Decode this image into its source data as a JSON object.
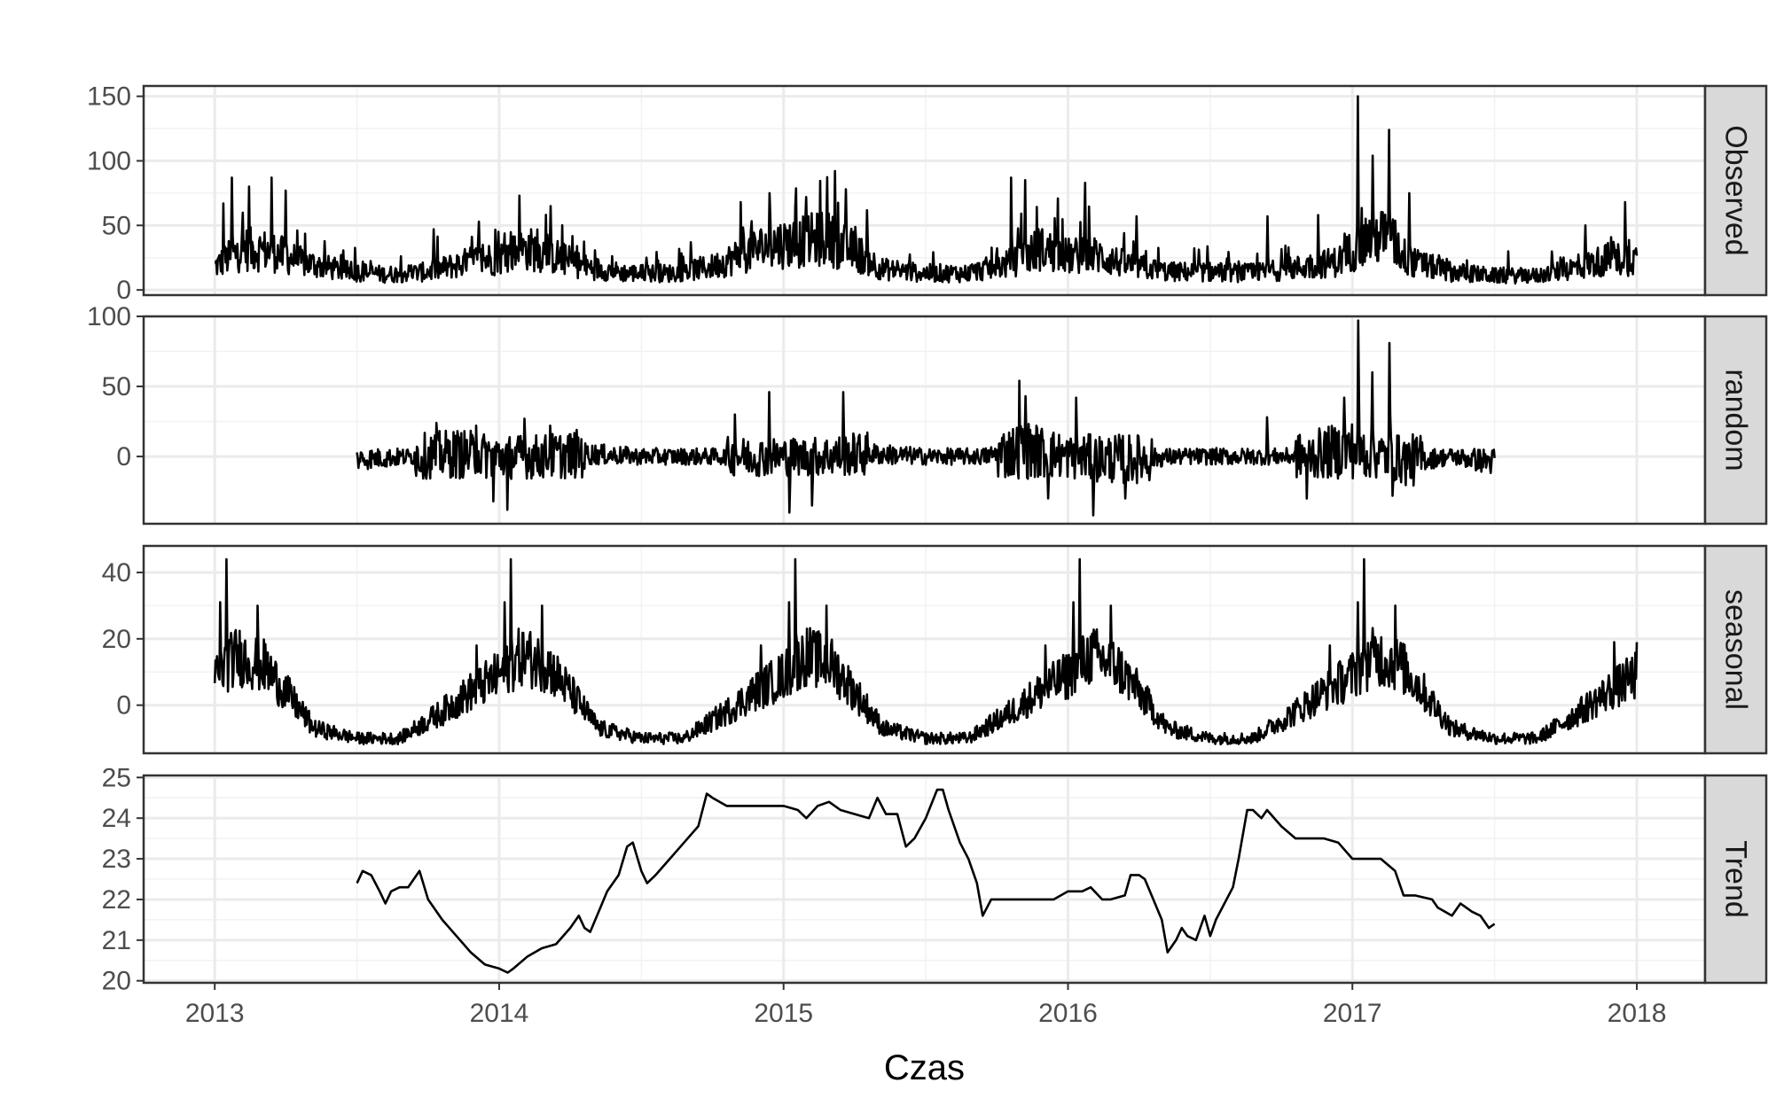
{
  "chart_data": {
    "type": "line",
    "xlabel": "Czas",
    "x_ticks": [
      2013,
      2014,
      2015,
      2016,
      2017,
      2018
    ],
    "xlim": [
      2012.75,
      2018.24
    ],
    "grid": true,
    "panels": [
      {
        "name": "Observed",
        "ylim": [
          -4,
          158
        ],
        "y_ticks": [
          0,
          50,
          100,
          150
        ],
        "x_range": [
          2013.0,
          2018.0
        ],
        "profile": [
          [
            2013.0,
            18
          ],
          [
            2013.1,
            32
          ],
          [
            2013.2,
            30
          ],
          [
            2013.3,
            22
          ],
          [
            2013.45,
            15
          ],
          [
            2013.6,
            12
          ],
          [
            2013.75,
            14
          ],
          [
            2013.9,
            22
          ],
          [
            2014.0,
            25
          ],
          [
            2014.1,
            32
          ],
          [
            2014.2,
            26
          ],
          [
            2014.3,
            18
          ],
          [
            2014.45,
            13
          ],
          [
            2014.6,
            13
          ],
          [
            2014.75,
            18
          ],
          [
            2014.85,
            27
          ],
          [
            2014.95,
            35
          ],
          [
            2015.05,
            37
          ],
          [
            2015.15,
            40
          ],
          [
            2015.25,
            30
          ],
          [
            2015.35,
            16
          ],
          [
            2015.5,
            13
          ],
          [
            2015.65,
            13
          ],
          [
            2015.8,
            21
          ],
          [
            2015.9,
            32
          ],
          [
            2016.0,
            26
          ],
          [
            2016.1,
            27
          ],
          [
            2016.2,
            20
          ],
          [
            2016.35,
            14
          ],
          [
            2016.5,
            14
          ],
          [
            2016.65,
            13
          ],
          [
            2016.8,
            17
          ],
          [
            2016.95,
            22
          ],
          [
            2017.05,
            40
          ],
          [
            2017.12,
            42
          ],
          [
            2017.2,
            22
          ],
          [
            2017.35,
            14
          ],
          [
            2017.5,
            11
          ],
          [
            2017.65,
            11
          ],
          [
            2017.8,
            18
          ],
          [
            2017.9,
            24
          ],
          [
            2018.0,
            24
          ]
        ],
        "spikes": [
          [
            2013.03,
            67
          ],
          [
            2013.06,
            87
          ],
          [
            2013.12,
            80
          ],
          [
            2013.2,
            87
          ],
          [
            2013.25,
            77
          ],
          [
            2013.77,
            47
          ],
          [
            2013.93,
            53
          ],
          [
            2014.07,
            73
          ],
          [
            2014.18,
            65
          ],
          [
            2014.85,
            68
          ],
          [
            2014.95,
            75
          ],
          [
            2015.08,
            72
          ],
          [
            2015.18,
            92
          ],
          [
            2015.22,
            78
          ],
          [
            2015.8,
            87
          ],
          [
            2015.85,
            85
          ],
          [
            2016.06,
            83
          ],
          [
            2016.24,
            57
          ],
          [
            2016.7,
            57
          ],
          [
            2016.88,
            58
          ],
          [
            2017.02,
            150
          ],
          [
            2017.07,
            104
          ],
          [
            2017.13,
            124
          ],
          [
            2017.2,
            75
          ],
          [
            2017.82,
            50
          ],
          [
            2017.96,
            68
          ]
        ]
      },
      {
        "name": "random",
        "ylim": [
          -48,
          100
        ],
        "y_ticks": [
          0,
          50,
          100
        ],
        "x_range": [
          2013.5,
          2017.5
        ],
        "profile": [
          [
            2013.5,
            -2
          ],
          [
            2013.7,
            0
          ],
          [
            2013.85,
            2
          ],
          [
            2014.0,
            0
          ],
          [
            2014.15,
            0
          ],
          [
            2014.3,
            2
          ],
          [
            2014.5,
            0
          ],
          [
            2014.7,
            0
          ],
          [
            2014.9,
            0
          ],
          [
            2015.1,
            0
          ],
          [
            2015.3,
            2
          ],
          [
            2015.5,
            0
          ],
          [
            2015.7,
            0
          ],
          [
            2015.85,
            5
          ],
          [
            2016.0,
            0
          ],
          [
            2016.2,
            -2
          ],
          [
            2016.4,
            0
          ],
          [
            2016.6,
            0
          ],
          [
            2016.8,
            0
          ],
          [
            2017.0,
            5
          ],
          [
            2017.2,
            -3
          ],
          [
            2017.35,
            0
          ],
          [
            2017.5,
            -4
          ]
        ],
        "spikes": [
          [
            2013.78,
            24
          ],
          [
            2013.92,
            22
          ],
          [
            2013.98,
            -32
          ],
          [
            2014.03,
            -38
          ],
          [
            2014.09,
            27
          ],
          [
            2014.18,
            22
          ],
          [
            2014.83,
            30
          ],
          [
            2014.95,
            46
          ],
          [
            2015.02,
            -40
          ],
          [
            2015.1,
            -35
          ],
          [
            2015.21,
            46
          ],
          [
            2015.83,
            54
          ],
          [
            2015.85,
            43
          ],
          [
            2015.93,
            -30
          ],
          [
            2016.03,
            42
          ],
          [
            2016.09,
            -42
          ],
          [
            2016.2,
            -30
          ],
          [
            2016.7,
            28
          ],
          [
            2016.84,
            -30
          ],
          [
            2016.97,
            42
          ],
          [
            2017.02,
            97
          ],
          [
            2017.07,
            60
          ],
          [
            2017.13,
            81
          ],
          [
            2017.14,
            -28
          ]
        ]
      },
      {
        "name": "seasonal",
        "ylim": [
          -14.5,
          48
        ],
        "y_ticks": [
          0,
          20,
          40
        ],
        "x_range": [
          2013.0,
          2018.0
        ],
        "profile": [
          [
            2013.0,
            9
          ],
          [
            2013.08,
            15
          ],
          [
            2013.17,
            12
          ],
          [
            2013.25,
            4
          ],
          [
            2013.35,
            -7
          ],
          [
            2013.5,
            -10
          ],
          [
            2013.65,
            -10
          ],
          [
            2013.8,
            -2
          ],
          [
            2013.9,
            4
          ],
          [
            2014.0,
            9
          ],
          [
            2014.08,
            15
          ],
          [
            2014.17,
            12
          ],
          [
            2014.25,
            4
          ],
          [
            2014.35,
            -7
          ],
          [
            2014.5,
            -10
          ],
          [
            2014.65,
            -10
          ],
          [
            2014.8,
            -2
          ],
          [
            2014.9,
            4
          ],
          [
            2015.0,
            9
          ],
          [
            2015.08,
            15
          ],
          [
            2015.17,
            12
          ],
          [
            2015.25,
            4
          ],
          [
            2015.35,
            -7
          ],
          [
            2015.5,
            -10
          ],
          [
            2015.65,
            -10
          ],
          [
            2015.8,
            -2
          ],
          [
            2015.9,
            4
          ],
          [
            2016.0,
            9
          ],
          [
            2016.08,
            15
          ],
          [
            2016.17,
            12
          ],
          [
            2016.25,
            4
          ],
          [
            2016.35,
            -7
          ],
          [
            2016.5,
            -10
          ],
          [
            2016.65,
            -10
          ],
          [
            2016.8,
            -2
          ],
          [
            2016.9,
            4
          ],
          [
            2017.0,
            9
          ],
          [
            2017.08,
            15
          ],
          [
            2017.17,
            12
          ],
          [
            2017.25,
            4
          ],
          [
            2017.35,
            -7
          ],
          [
            2017.5,
            -10
          ],
          [
            2017.65,
            -10
          ],
          [
            2017.8,
            -2
          ],
          [
            2017.9,
            4
          ],
          [
            2018.0,
            9
          ]
        ],
        "spikes": [
          [
            2013.04,
            44
          ],
          [
            2014.04,
            44
          ],
          [
            2015.04,
            44
          ],
          [
            2016.04,
            44
          ],
          [
            2017.04,
            44
          ],
          [
            2013.02,
            31
          ],
          [
            2014.02,
            31
          ],
          [
            2015.02,
            31
          ],
          [
            2016.02,
            31
          ],
          [
            2017.02,
            31
          ],
          [
            2013.15,
            30
          ],
          [
            2014.15,
            30
          ],
          [
            2015.15,
            30
          ],
          [
            2016.15,
            30
          ],
          [
            2017.15,
            30
          ],
          [
            2013.92,
            18
          ],
          [
            2014.92,
            18
          ],
          [
            2015.92,
            18
          ],
          [
            2016.92,
            18
          ],
          [
            2017.92,
            19
          ],
          [
            2018.0,
            19
          ]
        ]
      },
      {
        "name": "Trend",
        "ylim": [
          19.95,
          25.05
        ],
        "y_ticks": [
          20,
          21,
          22,
          23,
          24,
          25
        ],
        "x_range": [
          2013.5,
          2017.5
        ],
        "series": [
          [
            2013.5,
            22.4
          ],
          [
            2013.52,
            22.7
          ],
          [
            2013.55,
            22.6
          ],
          [
            2013.58,
            22.2
          ],
          [
            2013.6,
            21.9
          ],
          [
            2013.62,
            22.2
          ],
          [
            2013.65,
            22.3
          ],
          [
            2013.68,
            22.3
          ],
          [
            2013.72,
            22.7
          ],
          [
            2013.75,
            22.0
          ],
          [
            2013.8,
            21.5
          ],
          [
            2013.85,
            21.1
          ],
          [
            2013.9,
            20.7
          ],
          [
            2013.95,
            20.4
          ],
          [
            2014.0,
            20.3
          ],
          [
            2014.03,
            20.2
          ],
          [
            2014.05,
            20.3
          ],
          [
            2014.1,
            20.6
          ],
          [
            2014.15,
            20.8
          ],
          [
            2014.2,
            20.9
          ],
          [
            2014.25,
            21.3
          ],
          [
            2014.28,
            21.6
          ],
          [
            2014.3,
            21.3
          ],
          [
            2014.32,
            21.2
          ],
          [
            2014.35,
            21.7
          ],
          [
            2014.38,
            22.2
          ],
          [
            2014.42,
            22.6
          ],
          [
            2014.45,
            23.3
          ],
          [
            2014.47,
            23.4
          ],
          [
            2014.5,
            22.7
          ],
          [
            2014.52,
            22.4
          ],
          [
            2014.55,
            22.6
          ],
          [
            2014.6,
            23.0
          ],
          [
            2014.65,
            23.4
          ],
          [
            2014.7,
            23.8
          ],
          [
            2014.73,
            24.6
          ],
          [
            2014.75,
            24.5
          ],
          [
            2014.8,
            24.3
          ],
          [
            2014.9,
            24.3
          ],
          [
            2015.0,
            24.3
          ],
          [
            2015.05,
            24.2
          ],
          [
            2015.08,
            24.0
          ],
          [
            2015.12,
            24.3
          ],
          [
            2015.16,
            24.4
          ],
          [
            2015.2,
            24.2
          ],
          [
            2015.25,
            24.1
          ],
          [
            2015.3,
            24.0
          ],
          [
            2015.33,
            24.5
          ],
          [
            2015.36,
            24.1
          ],
          [
            2015.4,
            24.1
          ],
          [
            2015.43,
            23.3
          ],
          [
            2015.46,
            23.5
          ],
          [
            2015.5,
            24.0
          ],
          [
            2015.54,
            24.7
          ],
          [
            2015.56,
            24.7
          ],
          [
            2015.58,
            24.2
          ],
          [
            2015.62,
            23.4
          ],
          [
            2015.65,
            23.0
          ],
          [
            2015.68,
            22.4
          ],
          [
            2015.7,
            21.6
          ],
          [
            2015.73,
            22.0
          ],
          [
            2015.8,
            22.0
          ],
          [
            2015.9,
            22.0
          ],
          [
            2015.95,
            22.0
          ],
          [
            2016.0,
            22.2
          ],
          [
            2016.05,
            22.2
          ],
          [
            2016.08,
            22.3
          ],
          [
            2016.12,
            22.0
          ],
          [
            2016.15,
            22.0
          ],
          [
            2016.2,
            22.1
          ],
          [
            2016.22,
            22.6
          ],
          [
            2016.25,
            22.6
          ],
          [
            2016.27,
            22.5
          ],
          [
            2016.3,
            22.0
          ],
          [
            2016.33,
            21.5
          ],
          [
            2016.35,
            20.7
          ],
          [
            2016.38,
            21.0
          ],
          [
            2016.4,
            21.3
          ],
          [
            2016.42,
            21.1
          ],
          [
            2016.45,
            21.0
          ],
          [
            2016.48,
            21.6
          ],
          [
            2016.5,
            21.1
          ],
          [
            2016.52,
            21.5
          ],
          [
            2016.55,
            21.9
          ],
          [
            2016.58,
            22.3
          ],
          [
            2016.6,
            23.0
          ],
          [
            2016.63,
            24.2
          ],
          [
            2016.65,
            24.2
          ],
          [
            2016.68,
            24.0
          ],
          [
            2016.7,
            24.2
          ],
          [
            2016.75,
            23.8
          ],
          [
            2016.8,
            23.5
          ],
          [
            2016.9,
            23.5
          ],
          [
            2016.95,
            23.4
          ],
          [
            2017.0,
            23.0
          ],
          [
            2017.05,
            23.0
          ],
          [
            2017.1,
            23.0
          ],
          [
            2017.15,
            22.7
          ],
          [
            2017.18,
            22.1
          ],
          [
            2017.22,
            22.1
          ],
          [
            2017.28,
            22.0
          ],
          [
            2017.3,
            21.8
          ],
          [
            2017.35,
            21.6
          ],
          [
            2017.38,
            21.9
          ],
          [
            2017.42,
            21.7
          ],
          [
            2017.45,
            21.6
          ],
          [
            2017.48,
            21.3
          ],
          [
            2017.5,
            21.4
          ]
        ]
      }
    ]
  }
}
